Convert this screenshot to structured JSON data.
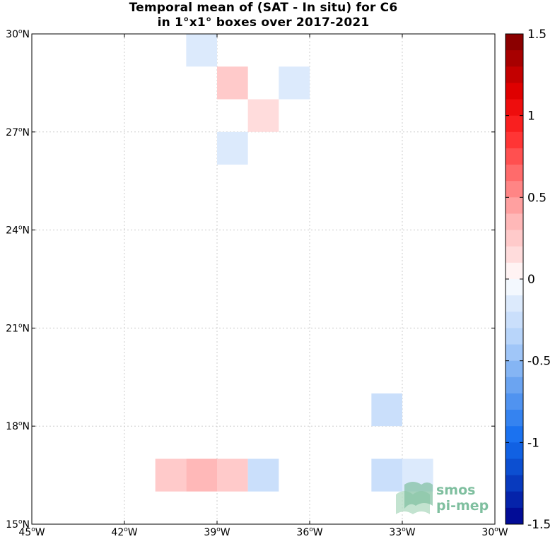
{
  "chart_data": {
    "type": "heatmap",
    "title": "Temporal mean of (SAT - In situ) for C6",
    "subtitle": "in 1°x1° boxes over 2017-2021",
    "xlim": [
      -45,
      -30
    ],
    "ylim": [
      15,
      30
    ],
    "x_ticks": [
      {
        "value": -45,
        "num": "45",
        "hemi": "W"
      },
      {
        "value": -42,
        "num": "42",
        "hemi": "W"
      },
      {
        "value": -39,
        "num": "39",
        "hemi": "W"
      },
      {
        "value": -36,
        "num": "36",
        "hemi": "W"
      },
      {
        "value": -33,
        "num": "33",
        "hemi": "W"
      },
      {
        "value": -30,
        "num": "30",
        "hemi": "W"
      }
    ],
    "y_ticks": [
      {
        "value": 15,
        "num": "15",
        "hemi": "N"
      },
      {
        "value": 18,
        "num": "18",
        "hemi": "N"
      },
      {
        "value": 21,
        "num": "21",
        "hemi": "N"
      },
      {
        "value": 24,
        "num": "24",
        "hemi": "N"
      },
      {
        "value": 27,
        "num": "27",
        "hemi": "N"
      },
      {
        "value": 30,
        "num": "30",
        "hemi": "N"
      }
    ],
    "grid": true,
    "colorbar": {
      "range": [
        -1.5,
        1.5
      ],
      "levels": 30,
      "ticks": [
        {
          "value": 1.5,
          "label": "1.5"
        },
        {
          "value": 1,
          "label": "1"
        },
        {
          "value": 0.5,
          "label": "0.5"
        },
        {
          "value": 0,
          "label": "0"
        },
        {
          "value": -0.5,
          "label": "-0.5"
        },
        {
          "value": -1,
          "label": "-1"
        },
        {
          "value": -1.5,
          "label": "-1.5"
        }
      ]
    },
    "cells": [
      {
        "lon": -40,
        "lat": 29,
        "value": -0.15
      },
      {
        "lon": -39,
        "lat": 28,
        "value": 0.25
      },
      {
        "lon": -37,
        "lat": 28,
        "value": -0.15
      },
      {
        "lon": -38,
        "lat": 27,
        "value": 0.15
      },
      {
        "lon": -39,
        "lat": 26,
        "value": -0.15
      },
      {
        "lon": -34,
        "lat": 18,
        "value": -0.25
      },
      {
        "lon": -41,
        "lat": 16,
        "value": 0.25
      },
      {
        "lon": -40,
        "lat": 16,
        "value": 0.35
      },
      {
        "lon": -39,
        "lat": 16,
        "value": 0.25
      },
      {
        "lon": -38,
        "lat": 16,
        "value": -0.25
      },
      {
        "lon": -34,
        "lat": 16,
        "value": -0.25
      },
      {
        "lon": -33,
        "lat": 16,
        "value": -0.15
      }
    ]
  },
  "logo": {
    "line1": "smos",
    "line2": "pi-mep"
  }
}
